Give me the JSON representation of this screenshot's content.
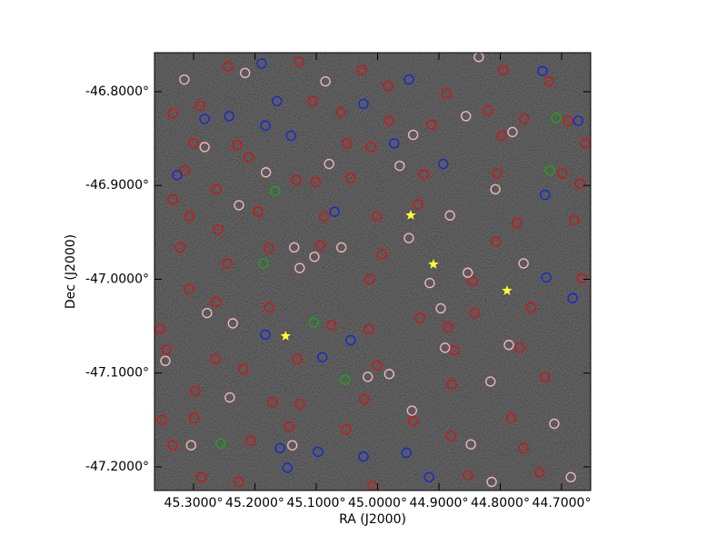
{
  "chart_data": {
    "type": "scatter",
    "x_label": "RA (J2000)",
    "y_label": "Dec (J2000)",
    "xlim": [
      45.3637,
      44.6526
    ],
    "ylim": [
      -47.2252,
      -46.7584
    ],
    "xticks": [
      {
        "value": 45.3,
        "label": "45.3000°"
      },
      {
        "value": 45.2,
        "label": "45.2000°"
      },
      {
        "value": 45.1,
        "label": "45.1000°"
      },
      {
        "value": 45.0,
        "label": "45.0000°"
      },
      {
        "value": 44.9,
        "label": "44.9000°"
      },
      {
        "value": 44.8,
        "label": "44.8000°"
      },
      {
        "value": 44.7,
        "label": "44.7000°"
      }
    ],
    "yticks": [
      {
        "value": -46.8,
        "label": "-46.8000°"
      },
      {
        "value": -46.9,
        "label": "-46.9000°"
      },
      {
        "value": -47.0,
        "label": "-47.0000°"
      },
      {
        "value": -47.1,
        "label": "-47.1000°"
      },
      {
        "value": -47.2,
        "label": "-47.2000°"
      }
    ],
    "series": [
      {
        "color": "#d41414",
        "marker": "circle",
        "x": [
          45.244,
          45.128,
          45.026,
          44.983,
          44.888,
          44.795,
          44.721,
          45.334,
          45.29,
          45.106,
          45.06,
          44.981,
          44.912,
          44.82,
          44.761,
          44.69,
          44.661,
          45.3,
          45.229,
          45.21,
          45.05,
          45.011,
          44.798,
          45.315,
          45.263,
          45.133,
          45.101,
          45.044,
          44.925,
          44.805,
          44.699,
          44.67,
          45.334,
          45.307,
          45.26,
          45.195,
          45.087,
          45.001,
          44.934,
          44.773,
          44.679,
          44.807,
          45.322,
          45.245,
          45.177,
          45.093,
          44.993,
          44.845,
          44.667,
          45.307,
          45.263,
          45.177,
          45.013,
          44.931,
          44.842,
          44.75,
          45.355,
          45.075,
          45.014,
          44.885,
          45.344,
          45.264,
          45.219,
          45.131,
          45.001,
          44.875,
          44.768,
          45.297,
          45.171,
          45.127,
          45.022,
          44.879,
          44.727,
          45.352,
          45.299,
          45.144,
          45.051,
          44.942,
          44.782,
          45.334,
          45.207,
          44.88,
          44.762,
          45.287,
          45.226,
          45.008,
          44.853,
          44.736
        ],
        "values": [
          -46.773,
          -46.768,
          -46.777,
          -46.794,
          -46.802,
          -46.777,
          -46.789,
          -46.823,
          -46.815,
          -46.81,
          -46.822,
          -46.831,
          -46.835,
          -46.82,
          -46.829,
          -46.831,
          -46.855,
          -46.855,
          -46.857,
          -46.87,
          -46.855,
          -46.859,
          -46.847,
          -46.884,
          -46.904,
          -46.894,
          -46.896,
          -46.892,
          -46.888,
          -46.887,
          -46.887,
          -46.898,
          -46.915,
          -46.933,
          -46.947,
          -46.928,
          -46.933,
          -46.933,
          -46.92,
          -46.94,
          -46.937,
          -46.96,
          -46.966,
          -46.983,
          -46.967,
          -46.964,
          -46.973,
          -47.002,
          -46.999,
          -47.01,
          -47.024,
          -47.03,
          -47.0,
          -47.041,
          -47.036,
          -47.03,
          -47.053,
          -47.049,
          -47.053,
          -47.051,
          -47.075,
          -47.085,
          -47.096,
          -47.085,
          -47.092,
          -47.076,
          -47.073,
          -47.119,
          -47.131,
          -47.133,
          -47.128,
          -47.112,
          -47.104,
          -47.15,
          -47.148,
          -47.157,
          -47.16,
          -47.151,
          -47.148,
          -47.177,
          -47.172,
          -47.167,
          -47.18,
          -47.211,
          -47.216,
          -47.22,
          -47.209,
          -47.206
        ]
      },
      {
        "color": "#f2b4bc",
        "marker": "circle",
        "x": [
          45.315,
          45.216,
          45.085,
          44.835,
          44.856,
          44.78,
          44.942,
          45.282,
          45.182,
          44.964,
          44.808,
          45.226,
          44.882,
          44.949,
          45.136,
          45.059,
          45.103,
          45.127,
          44.762,
          44.915,
          44.853,
          45.278,
          45.236,
          44.897,
          44.786,
          45.346,
          44.981,
          44.89,
          44.816,
          45.241,
          44.944,
          44.712,
          45.304,
          45.139,
          44.848,
          44.814,
          44.685,
          45.016,
          45.079
        ],
        "values": [
          -46.787,
          -46.78,
          -46.789,
          -46.763,
          -46.826,
          -46.843,
          -46.846,
          -46.859,
          -46.886,
          -46.879,
          -46.904,
          -46.921,
          -46.932,
          -46.956,
          -46.966,
          -46.966,
          -46.976,
          -46.988,
          -46.983,
          -47.004,
          -46.993,
          -47.036,
          -47.047,
          -47.031,
          -47.07,
          -47.087,
          -47.101,
          -47.073,
          -47.109,
          -47.126,
          -47.14,
          -47.154,
          -47.177,
          -47.177,
          -47.176,
          -47.216,
          -47.211,
          -47.104,
          -46.877
        ]
      },
      {
        "color": "#1428d8",
        "marker": "circle",
        "x": [
          45.189,
          45.164,
          45.282,
          45.242,
          45.183,
          45.141,
          45.023,
          44.949,
          44.731,
          44.673,
          44.893,
          45.327,
          45.07,
          44.973,
          44.725,
          44.682,
          45.183,
          45.09,
          45.044,
          45.159,
          45.097,
          44.953,
          44.916,
          45.147,
          45.023,
          44.727
        ],
        "values": [
          -46.77,
          -46.81,
          -46.829,
          -46.826,
          -46.836,
          -46.847,
          -46.813,
          -46.787,
          -46.778,
          -46.831,
          -46.877,
          -46.889,
          -46.928,
          -46.855,
          -46.998,
          -47.02,
          -47.059,
          -47.083,
          -47.065,
          -47.18,
          -47.184,
          -47.185,
          -47.211,
          -47.201,
          -47.189,
          -46.91
        ]
      },
      {
        "color": "#18a818",
        "marker": "circle",
        "x": [
          45.167,
          45.186,
          45.104,
          45.256,
          44.719,
          44.709,
          45.053
        ],
        "values": [
          -46.906,
          -46.983,
          -47.046,
          -47.175,
          -46.884,
          -46.828,
          -47.107
        ]
      },
      {
        "color": "#ffff33",
        "marker": "star",
        "x": [
          44.946,
          44.909,
          44.789,
          45.15
        ],
        "values": [
          -46.9317,
          -46.984,
          -47.0121,
          -47.0605
        ]
      }
    ]
  }
}
